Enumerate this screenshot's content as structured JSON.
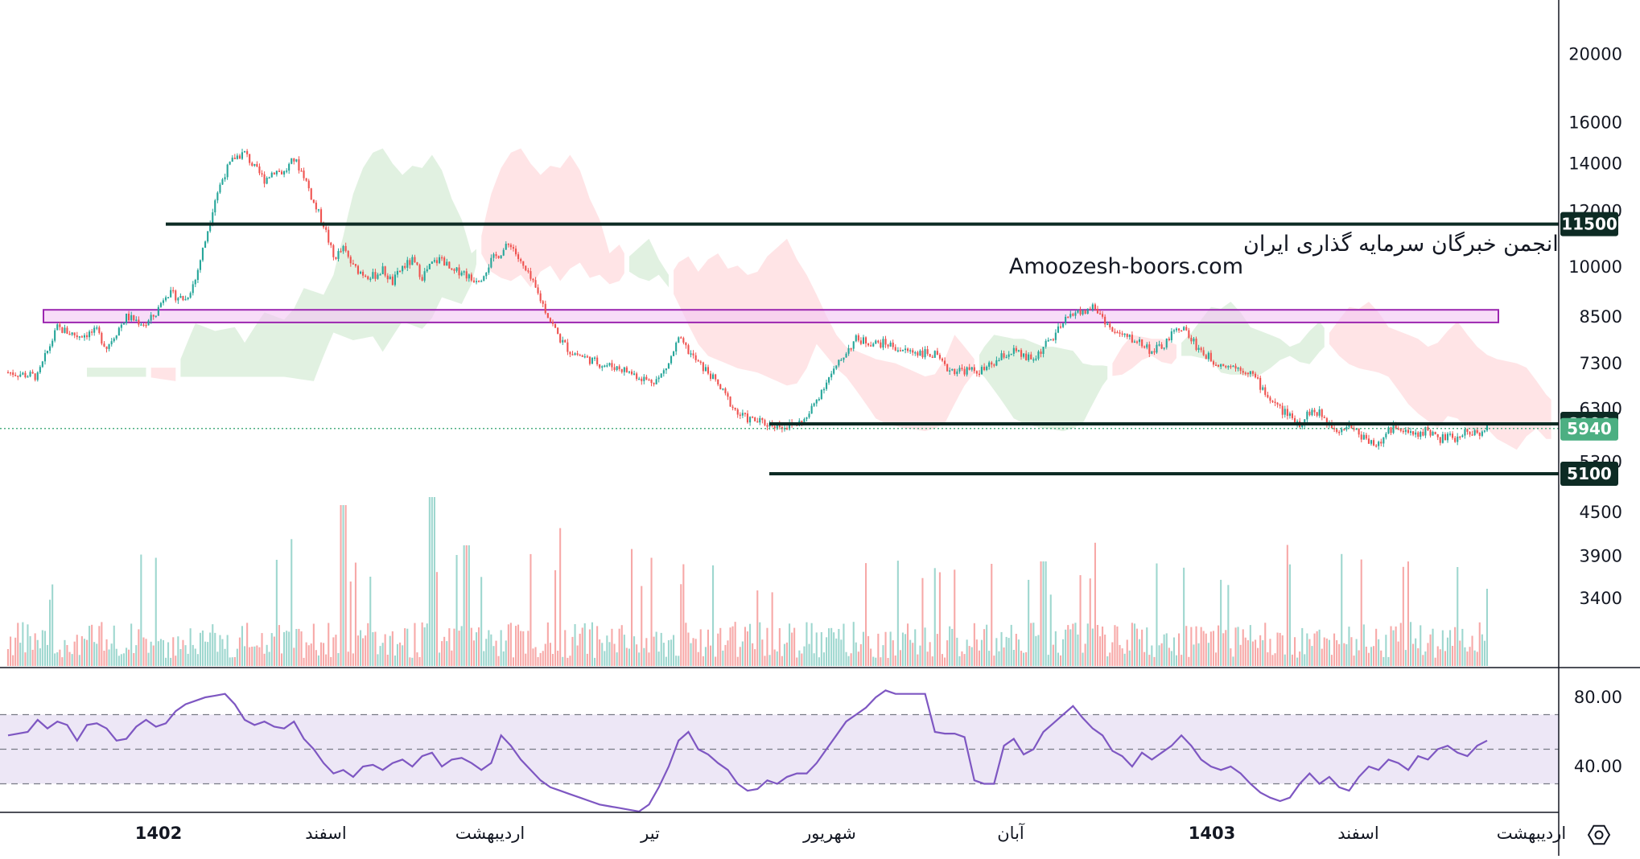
{
  "watermark": {
    "line1": "انجمن خبرگان سرمایه گذاری ایران",
    "line2": "Amoozesh-boors.com"
  },
  "colors": {
    "up": "#26a69a",
    "down": "#ef5350",
    "up_soft": "#9ed7cf",
    "down_soft": "#f7a9a8",
    "cloud_green": "#c8e6c9",
    "cloud_red": "#ffcdd2",
    "rsi_line": "#7e57c2",
    "rsi_band": "#ede7f6",
    "level_line": "#0d2b24",
    "zone_fill": "#f3c6f3",
    "zone_border": "#9c27b0",
    "current_price": "#4caf82"
  },
  "chart_data": [
    {
      "type": "candlestick",
      "title": "",
      "price_axis": {
        "scale": "log",
        "ticks": [
          "20000",
          "16000",
          "14000",
          "12000",
          "10000",
          "8500",
          "7300",
          "6300",
          "5300",
          "4500",
          "3900",
          "3400"
        ]
      },
      "time_axis": {
        "labels": [
          {
            "text": "1402",
            "bold": true
          },
          {
            "text": "اسفند",
            "bold": false
          },
          {
            "text": "اردیبهشت",
            "bold": false
          },
          {
            "text": "تیر",
            "bold": false
          },
          {
            "text": "شهریور",
            "bold": false
          },
          {
            "text": "آبان",
            "bold": false
          },
          {
            "text": "1403",
            "bold": true
          },
          {
            "text": "اسفند",
            "bold": false
          },
          {
            "text": "اردیبهشت",
            "bold": false
          }
        ]
      },
      "horizontal_levels": [
        {
          "value": 11500,
          "label": "11500",
          "span": "full"
        },
        {
          "value": 6000,
          "label": "6000",
          "span": "from-shahrivar"
        },
        {
          "value": 5100,
          "label": "5100",
          "span": "from-shahrivar"
        }
      ],
      "resistance_zone": {
        "low": 8350,
        "high": 8700
      },
      "current_price": {
        "value": 5940,
        "label": "5940"
      },
      "price_path": [
        [
          0,
          7100
        ],
        [
          3,
          7000
        ],
        [
          4,
          7600
        ],
        [
          5,
          8200
        ],
        [
          7,
          8000
        ],
        [
          9,
          8100
        ],
        [
          10,
          7700
        ],
        [
          12,
          8500
        ],
        [
          14,
          8300
        ],
        [
          15,
          8600
        ],
        [
          16,
          9200
        ],
        [
          18,
          9000
        ],
        [
          19,
          9600
        ],
        [
          20,
          10900
        ],
        [
          21,
          12500
        ],
        [
          22,
          13600
        ],
        [
          23,
          14300
        ],
        [
          24,
          14500
        ],
        [
          25,
          13800
        ],
        [
          26,
          13300
        ],
        [
          27,
          13700
        ],
        [
          28,
          13600
        ],
        [
          29,
          14200
        ],
        [
          30,
          13500
        ],
        [
          31,
          12300
        ],
        [
          32,
          11500
        ],
        [
          33,
          10300
        ],
        [
          34,
          10600
        ],
        [
          35,
          10000
        ],
        [
          36,
          9800
        ],
        [
          37,
          9700
        ],
        [
          38,
          9900
        ],
        [
          39,
          9500
        ],
        [
          40,
          10000
        ],
        [
          41,
          10200
        ],
        [
          42,
          9700
        ],
        [
          43,
          10100
        ],
        [
          44,
          10300
        ],
        [
          45,
          9800
        ],
        [
          46,
          9900
        ],
        [
          47,
          9600
        ],
        [
          48,
          9700
        ],
        [
          49,
          10200
        ],
        [
          50,
          10500
        ],
        [
          51,
          10800
        ],
        [
          52,
          10100
        ],
        [
          53,
          9600
        ],
        [
          54,
          9000
        ],
        [
          55,
          8400
        ],
        [
          56,
          7900
        ],
        [
          57,
          7600
        ],
        [
          58,
          7500
        ],
        [
          59,
          7400
        ],
        [
          60,
          7300
        ],
        [
          61,
          7250
        ],
        [
          62,
          7200
        ],
        [
          63,
          7100
        ],
        [
          64,
          7000
        ],
        [
          65,
          6900
        ],
        [
          66,
          6950
        ],
        [
          67,
          7300
        ],
        [
          68,
          7900
        ],
        [
          69,
          7600
        ],
        [
          70,
          7300
        ],
        [
          71,
          7100
        ],
        [
          72,
          6800
        ],
        [
          73,
          6500
        ],
        [
          74,
          6200
        ],
        [
          75,
          6100
        ],
        [
          76,
          6050
        ],
        [
          77,
          6000
        ],
        [
          78,
          5980
        ],
        [
          79,
          5950
        ],
        [
          80,
          6000
        ],
        [
          81,
          6100
        ],
        [
          82,
          6500
        ],
        [
          83,
          6900
        ],
        [
          84,
          7200
        ],
        [
          85,
          7600
        ],
        [
          86,
          7900
        ],
        [
          87,
          7850
        ],
        [
          88,
          7800
        ],
        [
          89,
          7800
        ],
        [
          90,
          7700
        ],
        [
          91,
          7600
        ],
        [
          92,
          7600
        ],
        [
          93,
          7550
        ],
        [
          94,
          7500
        ],
        [
          95,
          7200
        ],
        [
          96,
          7150
        ],
        [
          97,
          7150
        ],
        [
          98,
          7120
        ],
        [
          99,
          7150
        ],
        [
          100,
          7300
        ],
        [
          101,
          7500
        ],
        [
          102,
          7600
        ],
        [
          103,
          7450
        ],
        [
          104,
          7400
        ],
        [
          105,
          7700
        ],
        [
          106,
          7950
        ],
        [
          107,
          8300
        ],
        [
          108,
          8650
        ],
        [
          109,
          8600
        ],
        [
          110,
          8800
        ],
        [
          111,
          8500
        ],
        [
          112,
          8100
        ],
        [
          113,
          8000
        ],
        [
          114,
          7900
        ],
        [
          115,
          7800
        ],
        [
          116,
          7600
        ],
        [
          117,
          7700
        ],
        [
          118,
          8000
        ],
        [
          119,
          8250
        ],
        [
          120,
          7900
        ],
        [
          121,
          7600
        ],
        [
          122,
          7400
        ],
        [
          123,
          7300
        ],
        [
          124,
          7250
        ],
        [
          125,
          7200
        ],
        [
          126,
          7100
        ],
        [
          127,
          6800
        ],
        [
          128,
          6500
        ],
        [
          129,
          6300
        ],
        [
          130,
          6150
        ],
        [
          131,
          6000
        ],
        [
          132,
          6250
        ],
        [
          133,
          6200
        ],
        [
          134,
          6000
        ],
        [
          135,
          5900
        ],
        [
          136,
          6000
        ],
        [
          137,
          5800
        ],
        [
          138,
          5700
        ],
        [
          139,
          5600
        ],
        [
          140,
          5850
        ],
        [
          141,
          6000
        ],
        [
          142,
          5800
        ],
        [
          143,
          5800
        ],
        [
          144,
          5900
        ],
        [
          145,
          5700
        ],
        [
          146,
          5750
        ],
        [
          147,
          5700
        ],
        [
          148,
          5900
        ],
        [
          149,
          5800
        ],
        [
          150,
          5940
        ]
      ]
    },
    {
      "type": "line",
      "title": "",
      "y_axis": {
        "ticks": [
          "80.00",
          "40.00"
        ],
        "band": [
          30,
          70
        ],
        "midline": 50
      },
      "series": [
        {
          "name": "",
          "values": [
            [
              0,
              58
            ],
            [
              2,
              60
            ],
            [
              3,
              67
            ],
            [
              4,
              62
            ],
            [
              5,
              66
            ],
            [
              6,
              64
            ],
            [
              7,
              55
            ],
            [
              8,
              64
            ],
            [
              9,
              65
            ],
            [
              10,
              62
            ],
            [
              11,
              55
            ],
            [
              12,
              56
            ],
            [
              13,
              63
            ],
            [
              14,
              67
            ],
            [
              15,
              63
            ],
            [
              16,
              65
            ],
            [
              17,
              72
            ],
            [
              18,
              76
            ],
            [
              19,
              78
            ],
            [
              20,
              80
            ],
            [
              21,
              81
            ],
            [
              22,
              82
            ],
            [
              23,
              76
            ],
            [
              24,
              67
            ],
            [
              25,
              64
            ],
            [
              26,
              66
            ],
            [
              27,
              63
            ],
            [
              28,
              62
            ],
            [
              29,
              66
            ],
            [
              30,
              56
            ],
            [
              31,
              50
            ],
            [
              32,
              42
            ],
            [
              33,
              36
            ],
            [
              34,
              38
            ],
            [
              35,
              34
            ],
            [
              36,
              40
            ],
            [
              37,
              41
            ],
            [
              38,
              38
            ],
            [
              39,
              42
            ],
            [
              40,
              44
            ],
            [
              41,
              40
            ],
            [
              42,
              46
            ],
            [
              43,
              48
            ],
            [
              44,
              40
            ],
            [
              45,
              44
            ],
            [
              46,
              45
            ],
            [
              47,
              42
            ],
            [
              48,
              38
            ],
            [
              49,
              42
            ],
            [
              50,
              58
            ],
            [
              51,
              52
            ],
            [
              52,
              44
            ],
            [
              53,
              38
            ],
            [
              54,
              32
            ],
            [
              55,
              28
            ],
            [
              56,
              26
            ],
            [
              57,
              24
            ],
            [
              58,
              22
            ],
            [
              59,
              20
            ],
            [
              60,
              18
            ],
            [
              61,
              17
            ],
            [
              62,
              16
            ],
            [
              63,
              15
            ],
            [
              64,
              14
            ],
            [
              65,
              18
            ],
            [
              66,
              28
            ],
            [
              67,
              40
            ],
            [
              68,
              55
            ],
            [
              69,
              60
            ],
            [
              70,
              50
            ],
            [
              71,
              47
            ],
            [
              72,
              42
            ],
            [
              73,
              38
            ],
            [
              74,
              30
            ],
            [
              75,
              26
            ],
            [
              76,
              27
            ],
            [
              77,
              32
            ],
            [
              78,
              30
            ],
            [
              79,
              34
            ],
            [
              80,
              36
            ],
            [
              81,
              36
            ],
            [
              82,
              42
            ],
            [
              83,
              50
            ],
            [
              84,
              58
            ],
            [
              85,
              66
            ],
            [
              86,
              70
            ],
            [
              87,
              74
            ],
            [
              88,
              80
            ],
            [
              89,
              84
            ],
            [
              90,
              82
            ],
            [
              91,
              82
            ],
            [
              92,
              82
            ],
            [
              93,
              82
            ],
            [
              94,
              60
            ],
            [
              95,
              59
            ],
            [
              96,
              59
            ],
            [
              97,
              57
            ],
            [
              98,
              32
            ],
            [
              99,
              30
            ],
            [
              100,
              30
            ],
            [
              101,
              52
            ],
            [
              102,
              56
            ],
            [
              103,
              47
            ],
            [
              104,
              50
            ],
            [
              105,
              60
            ],
            [
              106,
              65
            ],
            [
              107,
              70
            ],
            [
              108,
              75
            ],
            [
              109,
              68
            ],
            [
              110,
              62
            ],
            [
              111,
              58
            ],
            [
              112,
              49
            ],
            [
              113,
              46
            ],
            [
              114,
              40
            ],
            [
              115,
              48
            ],
            [
              116,
              44
            ],
            [
              117,
              48
            ],
            [
              118,
              52
            ],
            [
              119,
              58
            ],
            [
              120,
              52
            ],
            [
              121,
              44
            ],
            [
              122,
              40
            ],
            [
              123,
              38
            ],
            [
              124,
              40
            ],
            [
              125,
              36
            ],
            [
              126,
              30
            ],
            [
              127,
              25
            ],
            [
              128,
              22
            ],
            [
              129,
              20
            ],
            [
              130,
              22
            ],
            [
              131,
              30
            ],
            [
              132,
              36
            ],
            [
              133,
              30
            ],
            [
              134,
              34
            ],
            [
              135,
              28
            ],
            [
              136,
              26
            ],
            [
              137,
              34
            ],
            [
              138,
              40
            ],
            [
              139,
              38
            ],
            [
              140,
              44
            ],
            [
              141,
              42
            ],
            [
              142,
              38
            ],
            [
              143,
              46
            ],
            [
              144,
              44
            ],
            [
              145,
              50
            ],
            [
              146,
              52
            ],
            [
              147,
              48
            ],
            [
              148,
              46
            ],
            [
              149,
              52
            ],
            [
              150,
              55
            ]
          ]
        }
      ]
    }
  ]
}
